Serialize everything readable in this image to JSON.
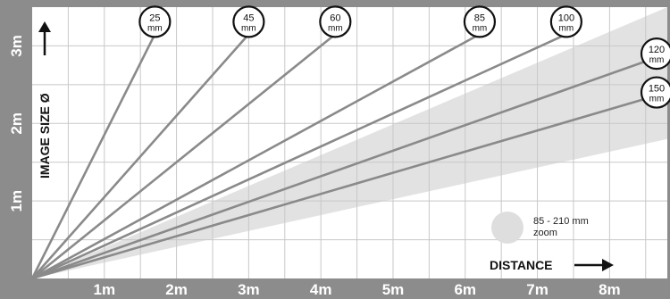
{
  "chart_data": {
    "type": "line",
    "title": "",
    "xlabel": "DISTANCE",
    "ylabel": "IMAGE SIZE Ø",
    "xlim": [
      0,
      8.8
    ],
    "ylim": [
      0,
      3.5
    ],
    "x_ticks": [
      "1m",
      "2m",
      "3m",
      "4m",
      "5m",
      "6m",
      "7m",
      "8m"
    ],
    "y_ticks": [
      "1m",
      "2m",
      "3m"
    ],
    "grid": true,
    "series": [
      {
        "name": "25",
        "unit": "mm",
        "points": [
          [
            0,
            0
          ],
          [
            1.7,
            3.15
          ]
        ]
      },
      {
        "name": "45",
        "unit": "mm",
        "points": [
          [
            0,
            0
          ],
          [
            3.0,
            3.15
          ]
        ]
      },
      {
        "name": "60",
        "unit": "mm",
        "points": [
          [
            0,
            0
          ],
          [
            4.2,
            3.15
          ]
        ]
      },
      {
        "name": "85",
        "unit": "mm",
        "points": [
          [
            0,
            0
          ],
          [
            6.2,
            3.15
          ]
        ]
      },
      {
        "name": "100",
        "unit": "mm",
        "points": [
          [
            0,
            0
          ],
          [
            7.4,
            3.15
          ]
        ]
      },
      {
        "name": "120",
        "unit": "mm",
        "points": [
          [
            0,
            0
          ],
          [
            8.8,
            2.9
          ]
        ]
      },
      {
        "name": "150",
        "unit": "mm",
        "points": [
          [
            0,
            0
          ],
          [
            8.8,
            2.4
          ]
        ]
      }
    ],
    "zoom_band": {
      "label": "85 - 210 mm",
      "label2": "zoom",
      "upper": [
        [
          0,
          0
        ],
        [
          8.8,
          3.6
        ]
      ],
      "lower": [
        [
          0,
          0
        ],
        [
          8.8,
          1.8
        ]
      ]
    },
    "colors": {
      "frame": "#8c8c8c",
      "grid": "#c8c8c8",
      "line": "#8a8a8a",
      "band": "#e2e2e2"
    }
  }
}
